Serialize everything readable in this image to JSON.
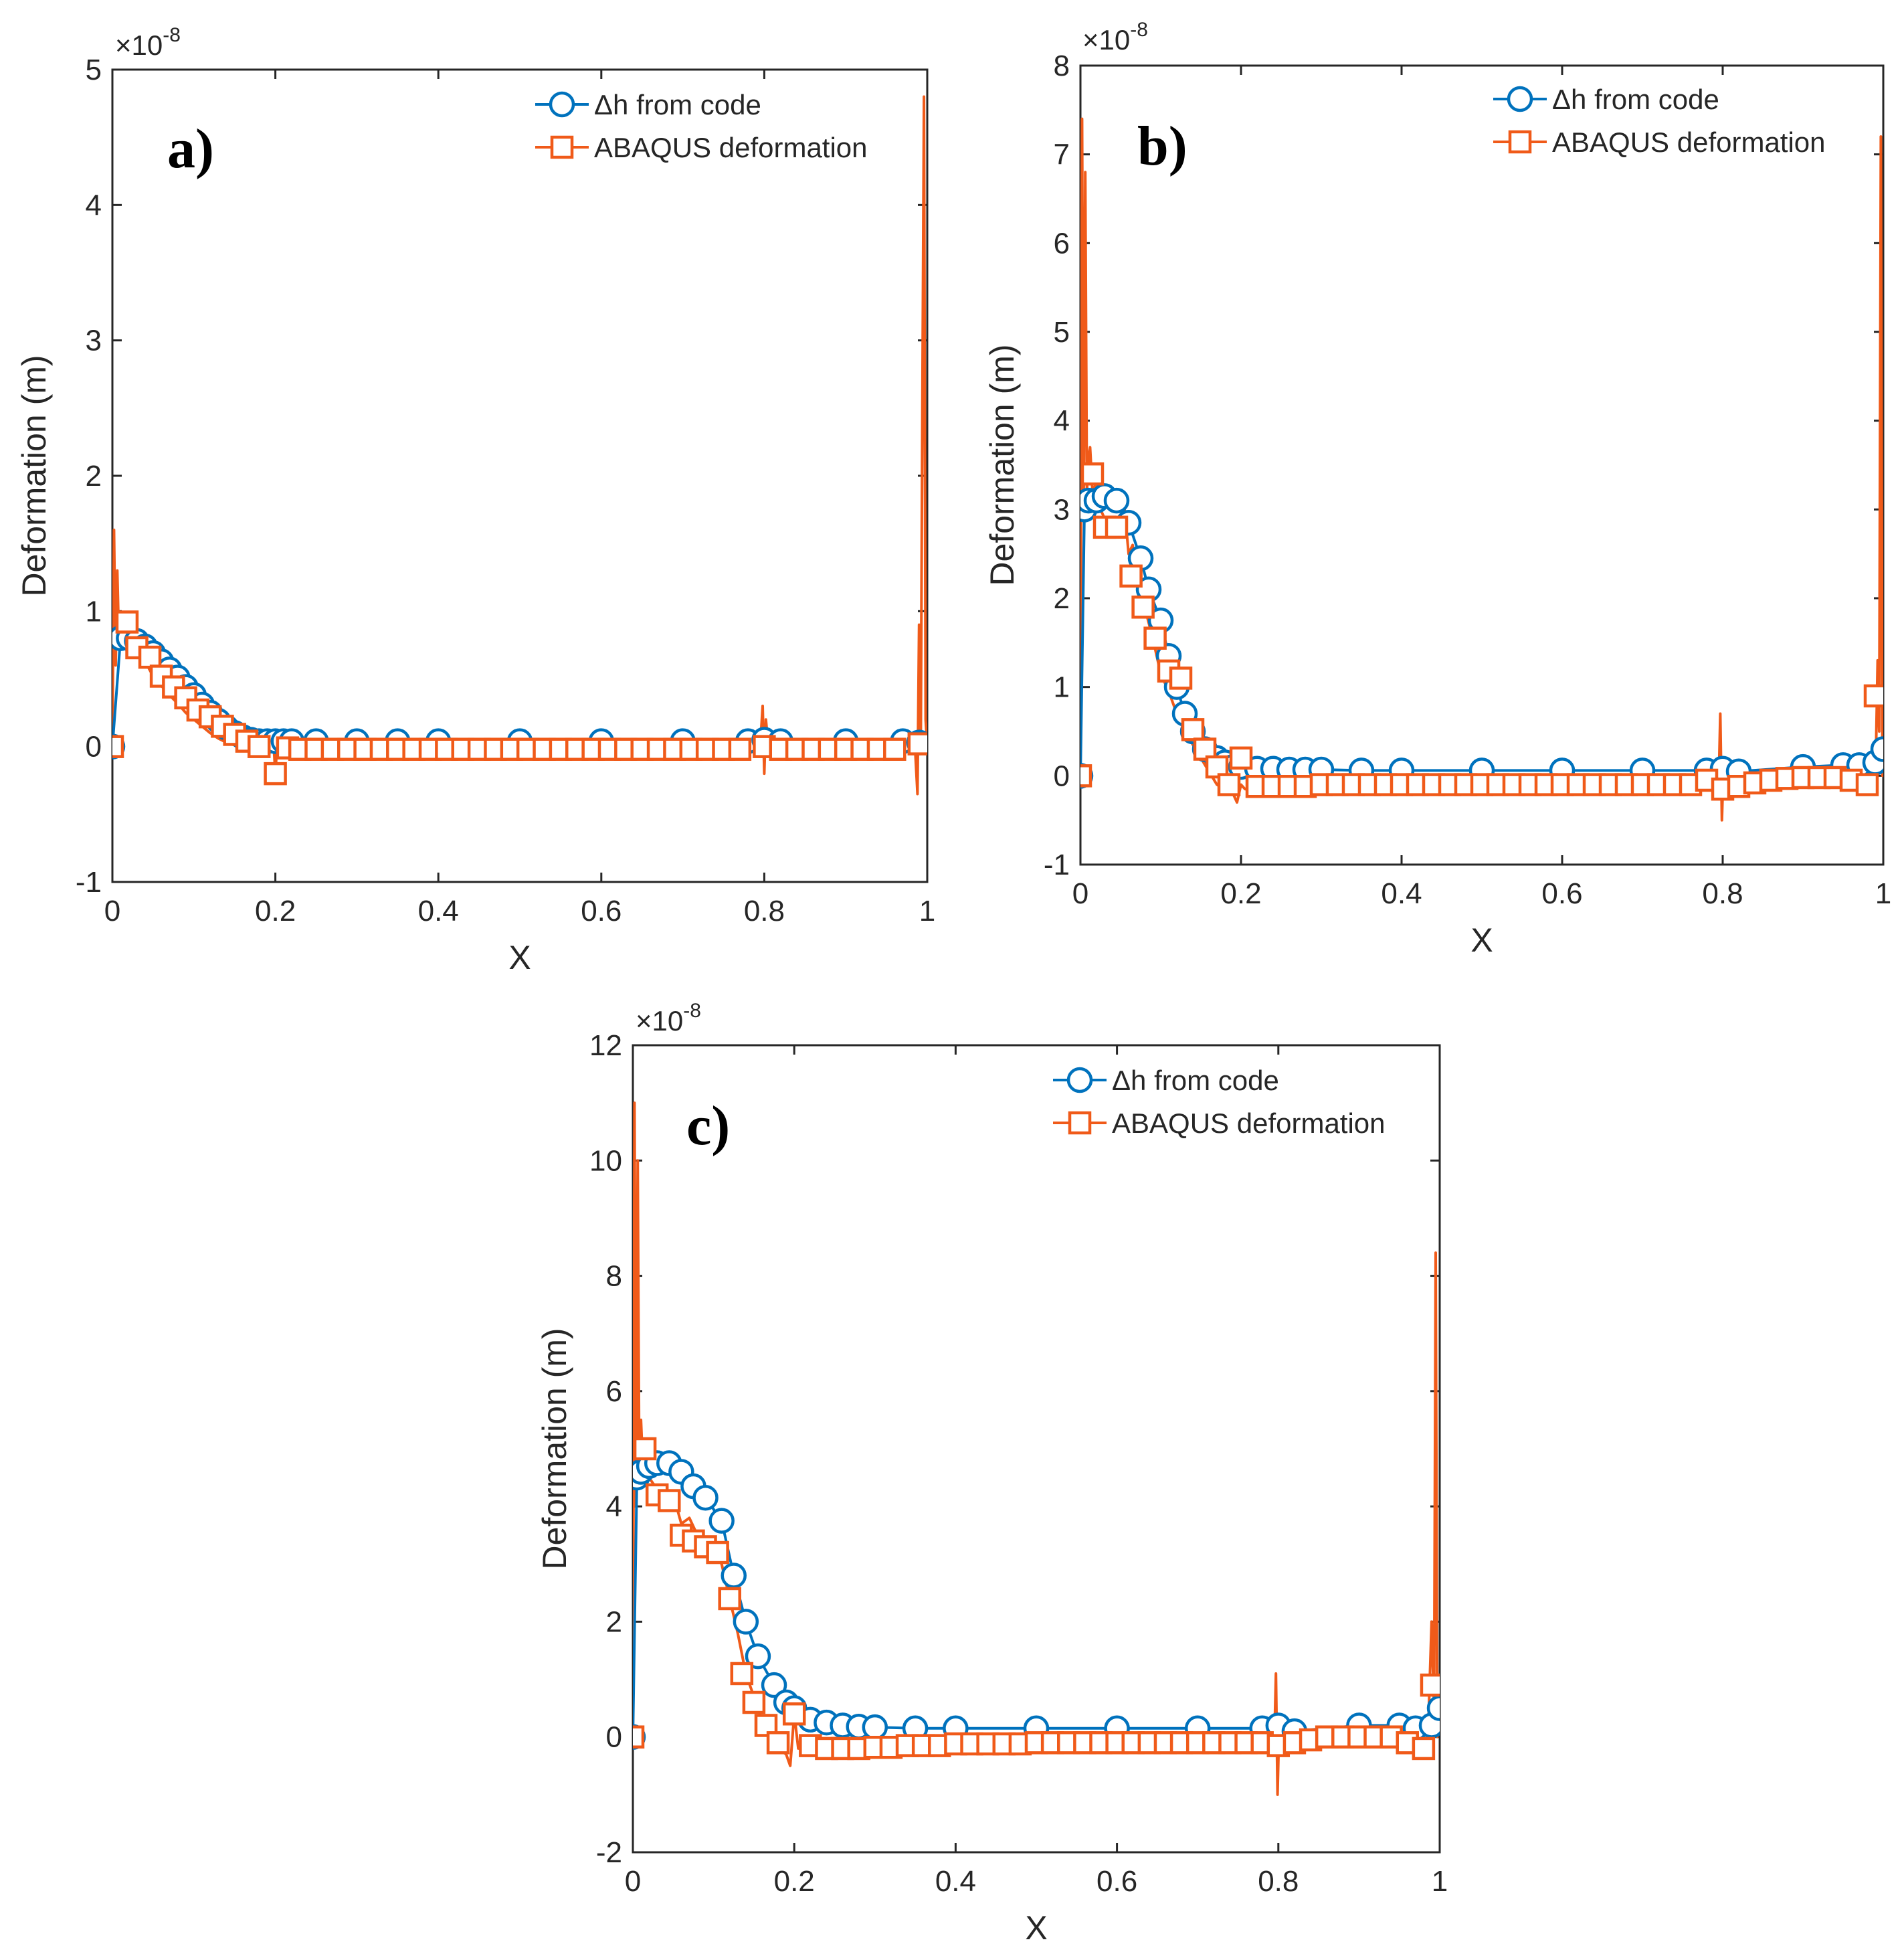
{
  "colors": {
    "code": "#0072BD",
    "abaqus": "#F05A19",
    "axis": "#262626",
    "background": "#ffffff"
  },
  "legend": {
    "code_label": "Δh from code",
    "abaqus_label": "ABAQUS deformation"
  },
  "chart_data": [
    {
      "id": "a",
      "type": "line",
      "panel_label": "a)",
      "xlabel": "X",
      "ylabel": "Deformation (m)",
      "multiplier_prefix": "×10",
      "multiplier_exponent": "-8",
      "xlim": [
        0,
        1
      ],
      "ylim": [
        -1,
        5
      ],
      "xticks": [
        0,
        0.2,
        0.4,
        0.6,
        0.8,
        1
      ],
      "xtick_labels": [
        "0",
        "0.2",
        "0.4",
        "0.6",
        "0.8",
        "1"
      ],
      "yticks": [
        -1,
        0,
        1,
        2,
        3,
        4,
        5
      ],
      "ytick_labels": [
        "-1",
        "0",
        "1",
        "2",
        "3",
        "4",
        "5"
      ],
      "series": [
        {
          "name": "Δh from code",
          "marker": "circle",
          "x": [
            0.0,
            0.01,
            0.02,
            0.03,
            0.04,
            0.05,
            0.06,
            0.07,
            0.08,
            0.09,
            0.1,
            0.11,
            0.12,
            0.13,
            0.14,
            0.15,
            0.16,
            0.17,
            0.18,
            0.19,
            0.2,
            0.21,
            0.22,
            0.25,
            0.3,
            0.35,
            0.4,
            0.5,
            0.6,
            0.7,
            0.78,
            0.8,
            0.82,
            0.9,
            0.97,
            0.99
          ],
          "y": [
            0.0,
            0.8,
            0.8,
            0.78,
            0.74,
            0.69,
            0.63,
            0.57,
            0.51,
            0.44,
            0.38,
            0.31,
            0.25,
            0.19,
            0.14,
            0.1,
            0.07,
            0.05,
            0.04,
            0.04,
            0.04,
            0.04,
            0.04,
            0.04,
            0.04,
            0.04,
            0.04,
            0.04,
            0.04,
            0.04,
            0.04,
            0.05,
            0.04,
            0.04,
            0.04,
            0.03
          ],
          "marker_every": 1
        },
        {
          "name": "ABAQUS deformation",
          "marker": "square",
          "x": [
            0.0,
            0.002,
            0.004,
            0.006,
            0.008,
            0.01,
            0.015,
            0.02,
            0.03,
            0.04,
            0.05,
            0.06,
            0.07,
            0.08,
            0.09,
            0.1,
            0.11,
            0.12,
            0.13,
            0.14,
            0.15,
            0.16,
            0.17,
            0.18,
            0.19,
            0.198,
            0.2,
            0.202,
            0.21,
            0.25,
            0.3,
            0.35,
            0.4,
            0.5,
            0.6,
            0.7,
            0.78,
            0.795,
            0.798,
            0.8,
            0.802,
            0.805,
            0.82,
            0.9,
            0.97,
            0.985,
            0.988,
            0.99,
            0.992,
            0.994,
            0.996,
            0.998,
            1.0
          ],
          "y": [
            0.0,
            1.6,
            0.6,
            1.3,
            0.8,
            0.95,
            0.9,
            0.72,
            0.7,
            0.63,
            0.52,
            0.45,
            0.38,
            0.32,
            0.25,
            0.2,
            0.15,
            0.1,
            0.06,
            0.03,
            0.01,
            0.0,
            -0.01,
            0.0,
            0.0,
            0.0,
            -0.2,
            0.0,
            0.0,
            0.0,
            0.0,
            0.0,
            0.0,
            0.0,
            0.0,
            0.0,
            0.0,
            0.0,
            0.3,
            -0.2,
            0.2,
            0.0,
            0.0,
            0.0,
            0.0,
            0.0,
            -0.35,
            0.9,
            0.0,
            2.5,
            4.8,
            0.2,
            0.0
          ],
          "marker_x": [
            0.0,
            0.018,
            0.03,
            0.046,
            0.06,
            0.075,
            0.09,
            0.105,
            0.12,
            0.135,
            0.15,
            0.165,
            0.18,
            0.2,
            0.215,
            0.23,
            0.25,
            0.27,
            0.29,
            0.31,
            0.33,
            0.35,
            0.37,
            0.39,
            0.41,
            0.43,
            0.45,
            0.47,
            0.49,
            0.51,
            0.53,
            0.55,
            0.57,
            0.59,
            0.61,
            0.63,
            0.65,
            0.67,
            0.69,
            0.71,
            0.73,
            0.75,
            0.77,
            0.8,
            0.82,
            0.84,
            0.86,
            0.88,
            0.9,
            0.92,
            0.94,
            0.96,
            0.99
          ],
          "marker_y": [
            0.0,
            0.92,
            0.73,
            0.66,
            0.52,
            0.44,
            0.36,
            0.27,
            0.22,
            0.15,
            0.09,
            0.04,
            0.0,
            -0.2,
            -0.01,
            -0.02,
            -0.02,
            -0.02,
            -0.02,
            -0.02,
            -0.02,
            -0.02,
            -0.02,
            -0.02,
            -0.02,
            -0.02,
            -0.02,
            -0.02,
            -0.02,
            -0.02,
            -0.02,
            -0.02,
            -0.02,
            -0.02,
            -0.02,
            -0.02,
            -0.02,
            -0.02,
            -0.02,
            -0.02,
            -0.02,
            -0.02,
            -0.02,
            0.0,
            -0.02,
            -0.02,
            -0.02,
            -0.02,
            -0.02,
            -0.02,
            -0.02,
            -0.02,
            0.02
          ]
        }
      ]
    },
    {
      "id": "b",
      "type": "line",
      "panel_label": "b)",
      "xlabel": "X",
      "ylabel": "Deformation (m)",
      "multiplier_prefix": "×10",
      "multiplier_exponent": "-8",
      "xlim": [
        0,
        1
      ],
      "ylim": [
        -1,
        8
      ],
      "xticks": [
        0,
        0.2,
        0.4,
        0.6,
        0.8,
        1
      ],
      "xtick_labels": [
        "0",
        "0.2",
        "0.4",
        "0.6",
        "0.8",
        "1"
      ],
      "yticks": [
        -1,
        0,
        1,
        2,
        3,
        4,
        5,
        6,
        7,
        8
      ],
      "ytick_labels": [
        "-1",
        "0",
        "1",
        "2",
        "3",
        "4",
        "5",
        "6",
        "7",
        "8"
      ],
      "series": [
        {
          "name": "Δh from code",
          "marker": "circle",
          "x": [
            0.0,
            0.005,
            0.01,
            0.02,
            0.03,
            0.045,
            0.06,
            0.075,
            0.085,
            0.1,
            0.11,
            0.12,
            0.13,
            0.14,
            0.155,
            0.17,
            0.18,
            0.19,
            0.2,
            0.22,
            0.24,
            0.26,
            0.28,
            0.3,
            0.35,
            0.4,
            0.5,
            0.6,
            0.7,
            0.78,
            0.8,
            0.82,
            0.9,
            0.95,
            0.97,
            0.99,
            1.0
          ],
          "y": [
            0.0,
            3.0,
            3.1,
            3.1,
            3.15,
            3.1,
            2.85,
            2.45,
            2.1,
            1.75,
            1.35,
            1.0,
            0.7,
            0.5,
            0.3,
            0.2,
            0.15,
            0.1,
            0.1,
            0.08,
            0.08,
            0.07,
            0.07,
            0.07,
            0.06,
            0.06,
            0.06,
            0.06,
            0.06,
            0.06,
            0.08,
            0.05,
            0.1,
            0.12,
            0.12,
            0.15,
            0.3
          ],
          "marker_every": 1
        },
        {
          "name": "ABAQUS deformation",
          "marker": "square",
          "x": [
            0.0,
            0.002,
            0.004,
            0.006,
            0.008,
            0.01,
            0.012,
            0.015,
            0.02,
            0.025,
            0.03,
            0.04,
            0.05,
            0.055,
            0.06,
            0.065,
            0.07,
            0.08,
            0.09,
            0.1,
            0.11,
            0.12,
            0.13,
            0.14,
            0.15,
            0.16,
            0.17,
            0.18,
            0.19,
            0.195,
            0.2,
            0.205,
            0.22,
            0.25,
            0.3,
            0.4,
            0.5,
            0.6,
            0.7,
            0.78,
            0.795,
            0.797,
            0.799,
            0.801,
            0.803,
            0.82,
            0.86,
            0.9,
            0.94,
            0.97,
            0.985,
            0.99,
            0.993,
            0.995,
            0.997,
            0.999,
            1.0
          ],
          "y": [
            0.0,
            7.4,
            3.0,
            6.8,
            3.2,
            3.6,
            3.7,
            3.2,
            3.3,
            3.0,
            2.9,
            2.85,
            2.7,
            3.0,
            2.5,
            2.6,
            2.2,
            1.9,
            1.55,
            1.15,
            0.95,
            0.7,
            0.5,
            0.35,
            0.2,
            0.05,
            -0.1,
            -0.15,
            -0.2,
            -0.3,
            -0.1,
            -0.15,
            -0.15,
            -0.15,
            -0.12,
            -0.1,
            -0.1,
            -0.1,
            -0.1,
            -0.1,
            -0.1,
            0.7,
            -0.5,
            0.1,
            -0.25,
            -0.2,
            -0.1,
            -0.05,
            -0.05,
            -0.05,
            -0.1,
            -0.2,
            1.3,
            0.5,
            7.2,
            0.0,
            0.1
          ],
          "marker_x": [
            0.0,
            0.015,
            0.03,
            0.045,
            0.063,
            0.078,
            0.093,
            0.11,
            0.125,
            0.14,
            0.155,
            0.17,
            0.185,
            0.2,
            0.22,
            0.24,
            0.26,
            0.28,
            0.3,
            0.32,
            0.34,
            0.36,
            0.38,
            0.4,
            0.42,
            0.44,
            0.46,
            0.48,
            0.5,
            0.52,
            0.54,
            0.56,
            0.58,
            0.6,
            0.62,
            0.64,
            0.66,
            0.68,
            0.7,
            0.72,
            0.74,
            0.76,
            0.78,
            0.8,
            0.82,
            0.84,
            0.86,
            0.88,
            0.9,
            0.92,
            0.94,
            0.96,
            0.98,
            0.99
          ],
          "marker_y": [
            0.0,
            3.4,
            2.8,
            2.8,
            2.25,
            1.9,
            1.55,
            1.18,
            1.1,
            0.52,
            0.3,
            0.1,
            -0.1,
            0.2,
            -0.12,
            -0.12,
            -0.12,
            -0.12,
            -0.1,
            -0.1,
            -0.1,
            -0.1,
            -0.1,
            -0.1,
            -0.1,
            -0.1,
            -0.1,
            -0.1,
            -0.1,
            -0.1,
            -0.1,
            -0.1,
            -0.1,
            -0.1,
            -0.1,
            -0.1,
            -0.1,
            -0.1,
            -0.1,
            -0.1,
            -0.1,
            -0.1,
            -0.05,
            -0.15,
            -0.12,
            -0.08,
            -0.05,
            -0.03,
            -0.02,
            -0.02,
            -0.02,
            -0.05,
            -0.1,
            0.9
          ]
        }
      ]
    },
    {
      "id": "c",
      "type": "line",
      "panel_label": "c)",
      "xlabel": "X",
      "ylabel": "Deformation (m)",
      "multiplier_prefix": "×10",
      "multiplier_exponent": "-8",
      "xlim": [
        0,
        1
      ],
      "ylim": [
        -2,
        12
      ],
      "xticks": [
        0,
        0.2,
        0.4,
        0.6,
        0.8,
        1
      ],
      "xtick_labels": [
        "0",
        "0.2",
        "0.4",
        "0.6",
        "0.8",
        "1"
      ],
      "yticks": [
        -2,
        0,
        2,
        4,
        6,
        8,
        10,
        12
      ],
      "ytick_labels": [
        "-2",
        "0",
        "2",
        "4",
        "6",
        "8",
        "10",
        "12"
      ],
      "series": [
        {
          "name": "Δh from code",
          "marker": "circle",
          "x": [
            0.0,
            0.005,
            0.01,
            0.02,
            0.03,
            0.045,
            0.06,
            0.075,
            0.09,
            0.11,
            0.125,
            0.14,
            0.155,
            0.175,
            0.19,
            0.2,
            0.22,
            0.24,
            0.26,
            0.28,
            0.3,
            0.35,
            0.4,
            0.5,
            0.6,
            0.7,
            0.78,
            0.8,
            0.82,
            0.9,
            0.95,
            0.97,
            0.99,
            1.0
          ],
          "y": [
            0.0,
            4.5,
            4.6,
            4.7,
            4.75,
            4.75,
            4.6,
            4.35,
            4.15,
            3.75,
            2.8,
            2.0,
            1.4,
            0.9,
            0.6,
            0.5,
            0.3,
            0.25,
            0.2,
            0.18,
            0.17,
            0.15,
            0.15,
            0.15,
            0.15,
            0.15,
            0.15,
            0.2,
            0.1,
            0.2,
            0.2,
            0.15,
            0.2,
            0.5
          ],
          "marker_every": 1
        },
        {
          "name": "ABAQUS deformation",
          "marker": "square",
          "x": [
            0.0,
            0.002,
            0.004,
            0.006,
            0.008,
            0.01,
            0.012,
            0.015,
            0.02,
            0.03,
            0.04,
            0.05,
            0.06,
            0.07,
            0.08,
            0.09,
            0.1,
            0.11,
            0.12,
            0.13,
            0.14,
            0.15,
            0.16,
            0.17,
            0.18,
            0.19,
            0.195,
            0.2,
            0.205,
            0.22,
            0.25,
            0.3,
            0.4,
            0.5,
            0.6,
            0.7,
            0.78,
            0.795,
            0.797,
            0.799,
            0.801,
            0.803,
            0.82,
            0.86,
            0.9,
            0.94,
            0.97,
            0.985,
            0.99,
            0.993,
            0.995,
            0.997,
            0.999,
            1.0
          ],
          "y": [
            0.0,
            11.0,
            4.0,
            10.0,
            4.5,
            5.5,
            4.8,
            5.0,
            4.5,
            4.3,
            4.1,
            4.2,
            3.7,
            3.8,
            3.5,
            3.4,
            3.2,
            3.0,
            2.4,
            1.8,
            1.1,
            0.7,
            0.3,
            -0.1,
            -0.2,
            -0.3,
            -0.5,
            0.4,
            -0.2,
            -0.2,
            -0.2,
            -0.15,
            -0.12,
            -0.1,
            -0.1,
            -0.1,
            -0.1,
            -0.1,
            1.1,
            -1.0,
            0.2,
            -0.3,
            -0.2,
            -0.05,
            0.0,
            0.0,
            -0.1,
            -0.2,
            2.0,
            0.5,
            8.4,
            0.0,
            1.0,
            0.9
          ],
          "marker_x": [
            0.0,
            0.015,
            0.03,
            0.045,
            0.06,
            0.075,
            0.09,
            0.105,
            0.12,
            0.135,
            0.15,
            0.165,
            0.18,
            0.2,
            0.22,
            0.24,
            0.26,
            0.28,
            0.3,
            0.32,
            0.34,
            0.36,
            0.38,
            0.4,
            0.42,
            0.44,
            0.46,
            0.48,
            0.5,
            0.52,
            0.54,
            0.56,
            0.58,
            0.6,
            0.62,
            0.64,
            0.66,
            0.68,
            0.7,
            0.72,
            0.74,
            0.76,
            0.78,
            0.8,
            0.82,
            0.84,
            0.86,
            0.88,
            0.9,
            0.92,
            0.94,
            0.96,
            0.98,
            0.99
          ],
          "marker_y": [
            0.0,
            5.0,
            4.2,
            4.1,
            3.5,
            3.4,
            3.3,
            3.2,
            2.4,
            1.1,
            0.6,
            0.2,
            -0.1,
            0.4,
            -0.15,
            -0.2,
            -0.2,
            -0.2,
            -0.18,
            -0.18,
            -0.15,
            -0.15,
            -0.15,
            -0.12,
            -0.12,
            -0.12,
            -0.12,
            -0.12,
            -0.1,
            -0.1,
            -0.1,
            -0.1,
            -0.1,
            -0.1,
            -0.1,
            -0.1,
            -0.1,
            -0.1,
            -0.1,
            -0.1,
            -0.1,
            -0.1,
            -0.1,
            -0.15,
            -0.1,
            -0.05,
            0.0,
            0.0,
            0.0,
            0.0,
            0.0,
            -0.1,
            -0.2,
            0.9
          ]
        }
      ]
    }
  ]
}
